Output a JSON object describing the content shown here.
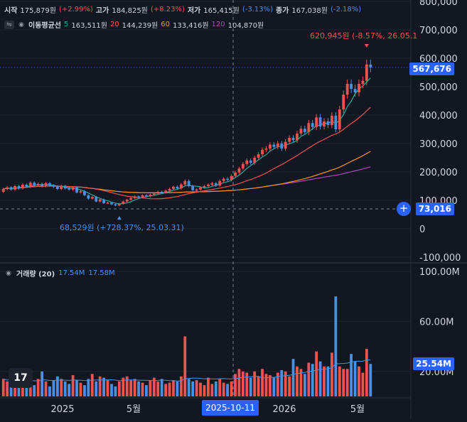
{
  "ohlc": {
    "open_label": "시작",
    "open": "175,879원",
    "open_chg": "(+2.99%)",
    "high_label": "고가",
    "high": "184,825원",
    "high_chg": "(+8.23%)",
    "low_label": "저가",
    "low": "165,415원",
    "low_chg": "(-3.13%)",
    "close_label": "종가",
    "close": "167,038원",
    "close_chg": "(-2.18%)"
  },
  "ma_legend": {
    "label": "이동평균선",
    "p5": "5",
    "v5": "163,511원",
    "p20": "20",
    "v20": "144,239원",
    "p60": "60",
    "v60": "133,416원",
    "p120": "120",
    "v120": "104,870원"
  },
  "volume_legend": {
    "label": "거래량 (20)",
    "v1": "17.54M",
    "v2": "17.58M"
  },
  "annotations": {
    "high_marker": "620,945원 (-8.57%, 26.05.1",
    "low_marker": "68,529원 (+728.37%, 25.03.31)"
  },
  "price_tags": {
    "last": "567,676",
    "crosshair": "73,016",
    "volume": "25.54M"
  },
  "crosshair_date": "2025-10-11",
  "logo_text": "17",
  "colors": {
    "up": "#ef5350",
    "down": "#4a90e2",
    "ma5": "#26a69a",
    "ma20": "#ef5350",
    "ma60": "#f7931a",
    "ma120": "#ab47bc",
    "accent": "#2962ff"
  },
  "chart_data": {
    "type": "candlestick",
    "price_axis": {
      "ticks": [
        "800,000",
        "700,000",
        "600,000",
        "500,000",
        "400,000",
        "300,000",
        "200,000",
        "100,000",
        "0",
        "-100,000"
      ],
      "ylim": [
        -100000,
        800000
      ]
    },
    "volume_axis": {
      "ticks": [
        "100.00M",
        "60.00M",
        "20.00M"
      ],
      "ylim": [
        0,
        100000000
      ]
    },
    "x_ticks": [
      "2025",
      "5월",
      "2026",
      "5월"
    ],
    "candles": [
      {
        "o": 130000,
        "c": 140000
      },
      {
        "o": 140000,
        "c": 146000
      },
      {
        "o": 146000,
        "c": 138000
      },
      {
        "o": 138000,
        "c": 150000
      },
      {
        "o": 150000,
        "c": 142000
      },
      {
        "o": 142000,
        "c": 155000
      },
      {
        "o": 155000,
        "c": 148000
      },
      {
        "o": 148000,
        "c": 162000
      },
      {
        "o": 162000,
        "c": 153000
      },
      {
        "o": 153000,
        "c": 158000
      },
      {
        "o": 158000,
        "c": 150000
      },
      {
        "o": 150000,
        "c": 160000
      },
      {
        "o": 160000,
        "c": 152000
      },
      {
        "o": 152000,
        "c": 148000
      },
      {
        "o": 148000,
        "c": 140000
      },
      {
        "o": 140000,
        "c": 150000
      },
      {
        "o": 150000,
        "c": 142000
      },
      {
        "o": 142000,
        "c": 138000
      },
      {
        "o": 138000,
        "c": 145000
      },
      {
        "o": 145000,
        "c": 128000
      },
      {
        "o": 128000,
        "c": 132000
      },
      {
        "o": 132000,
        "c": 118000
      },
      {
        "o": 118000,
        "c": 106000
      },
      {
        "o": 106000,
        "c": 112000
      },
      {
        "o": 112000,
        "c": 96000
      },
      {
        "o": 96000,
        "c": 103000
      },
      {
        "o": 103000,
        "c": 90000
      },
      {
        "o": 90000,
        "c": 92000
      },
      {
        "o": 92000,
        "c": 86000
      },
      {
        "o": 86000,
        "c": 82000
      },
      {
        "o": 82000,
        "c": 88000
      },
      {
        "o": 88000,
        "c": 96000
      },
      {
        "o": 96000,
        "c": 102000
      },
      {
        "o": 102000,
        "c": 108000
      },
      {
        "o": 108000,
        "c": 114000
      },
      {
        "o": 114000,
        "c": 111000
      },
      {
        "o": 111000,
        "c": 118000
      },
      {
        "o": 118000,
        "c": 114000
      },
      {
        "o": 114000,
        "c": 120000
      },
      {
        "o": 120000,
        "c": 124000
      },
      {
        "o": 124000,
        "c": 130000
      },
      {
        "o": 130000,
        "c": 128000
      },
      {
        "o": 128000,
        "c": 134000
      },
      {
        "o": 134000,
        "c": 140000
      },
      {
        "o": 140000,
        "c": 148000
      },
      {
        "o": 148000,
        "c": 142000
      },
      {
        "o": 142000,
        "c": 156000
      },
      {
        "o": 156000,
        "c": 168000
      },
      {
        "o": 168000,
        "c": 150000
      },
      {
        "o": 150000,
        "c": 136000
      },
      {
        "o": 136000,
        "c": 138000
      },
      {
        "o": 138000,
        "c": 145000
      },
      {
        "o": 145000,
        "c": 150000
      },
      {
        "o": 150000,
        "c": 155000
      },
      {
        "o": 155000,
        "c": 160000
      },
      {
        "o": 160000,
        "c": 152000
      },
      {
        "o": 152000,
        "c": 168000
      },
      {
        "o": 168000,
        "c": 176000
      },
      {
        "o": 176000,
        "c": 172000
      },
      {
        "o": 172000,
        "c": 186000
      },
      {
        "o": 186000,
        "c": 198000
      },
      {
        "o": 198000,
        "c": 212000
      },
      {
        "o": 212000,
        "c": 228000
      },
      {
        "o": 228000,
        "c": 240000
      },
      {
        "o": 240000,
        "c": 232000
      },
      {
        "o": 232000,
        "c": 250000
      },
      {
        "o": 250000,
        "c": 262000
      },
      {
        "o": 262000,
        "c": 278000
      },
      {
        "o": 278000,
        "c": 282000
      },
      {
        "o": 282000,
        "c": 296000
      },
      {
        "o": 296000,
        "c": 288000
      },
      {
        "o": 288000,
        "c": 300000
      },
      {
        "o": 300000,
        "c": 282000
      },
      {
        "o": 282000,
        "c": 306000
      },
      {
        "o": 306000,
        "c": 320000
      },
      {
        "o": 320000,
        "c": 312000
      },
      {
        "o": 312000,
        "c": 335000
      },
      {
        "o": 335000,
        "c": 352000
      },
      {
        "o": 352000,
        "c": 340000
      },
      {
        "o": 340000,
        "c": 372000
      },
      {
        "o": 372000,
        "c": 358000
      },
      {
        "o": 358000,
        "c": 392000
      },
      {
        "o": 392000,
        "c": 360000
      },
      {
        "o": 360000,
        "c": 378000
      },
      {
        "o": 378000,
        "c": 365000
      },
      {
        "o": 365000,
        "c": 398000
      },
      {
        "o": 398000,
        "c": 350000
      },
      {
        "o": 350000,
        "c": 420000
      },
      {
        "o": 420000,
        "c": 472000
      },
      {
        "o": 472000,
        "c": 510000
      },
      {
        "o": 510000,
        "c": 492000
      },
      {
        "o": 492000,
        "c": 480000
      },
      {
        "o": 480000,
        "c": 510000
      },
      {
        "o": 510000,
        "c": 520000
      },
      {
        "o": 520000,
        "c": 578000
      },
      {
        "o": 578000,
        "c": 567676
      }
    ],
    "volumes": [
      14,
      12,
      16,
      11,
      10,
      15,
      13,
      12,
      9,
      14,
      20,
      12,
      8,
      13,
      16,
      14,
      12,
      10,
      17,
      13,
      11,
      9,
      14,
      18,
      12,
      16,
      15,
      13,
      10,
      8,
      12,
      15,
      16,
      13,
      14,
      12,
      11,
      9,
      13,
      15,
      12,
      14,
      10,
      11,
      13,
      12,
      16,
      48,
      14,
      12,
      13,
      11,
      9,
      15,
      10,
      12,
      14,
      11,
      10,
      12,
      18,
      22,
      20,
      19,
      15,
      20,
      16,
      22,
      18,
      17,
      15,
      19,
      21,
      20,
      16,
      30,
      24,
      22,
      18,
      27,
      26,
      36,
      28,
      24,
      24,
      35,
      80,
      24,
      22,
      22,
      34,
      28,
      24,
      19,
      38,
      26
    ]
  }
}
